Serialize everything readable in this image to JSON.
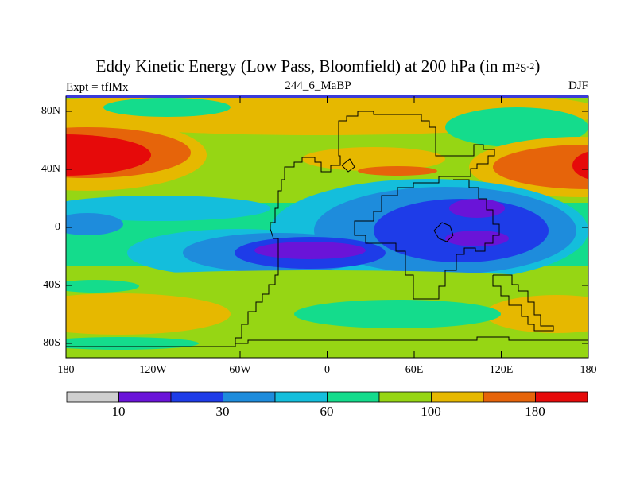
{
  "header": {
    "title_main": "Eddy Kinetic Energy (Low Pass, Bloomfield) at 200 hPa (in m",
    "title_sup1": "2",
    "title_s": "s",
    "title_sup2": "-2",
    "title_close": ")",
    "left": "Expt = tflMx",
    "center": "244_6_MaBP",
    "right": "DJF"
  },
  "axes": {
    "y_ticks": [
      "80N",
      "40N",
      "0",
      "40S",
      "80S"
    ],
    "x_ticks": [
      "180",
      "120W",
      "60W",
      "0",
      "60E",
      "120E",
      "180"
    ]
  },
  "colorbar": {
    "colors": [
      "#cfcfcf",
      "#6a14d8",
      "#1e3ce8",
      "#1e8cdc",
      "#14bedc",
      "#14dc8c",
      "#96d614",
      "#e6b800",
      "#e6640a",
      "#e60a0a"
    ],
    "tick_labels": [
      "10",
      "30",
      "60",
      "100",
      "180"
    ]
  }
}
